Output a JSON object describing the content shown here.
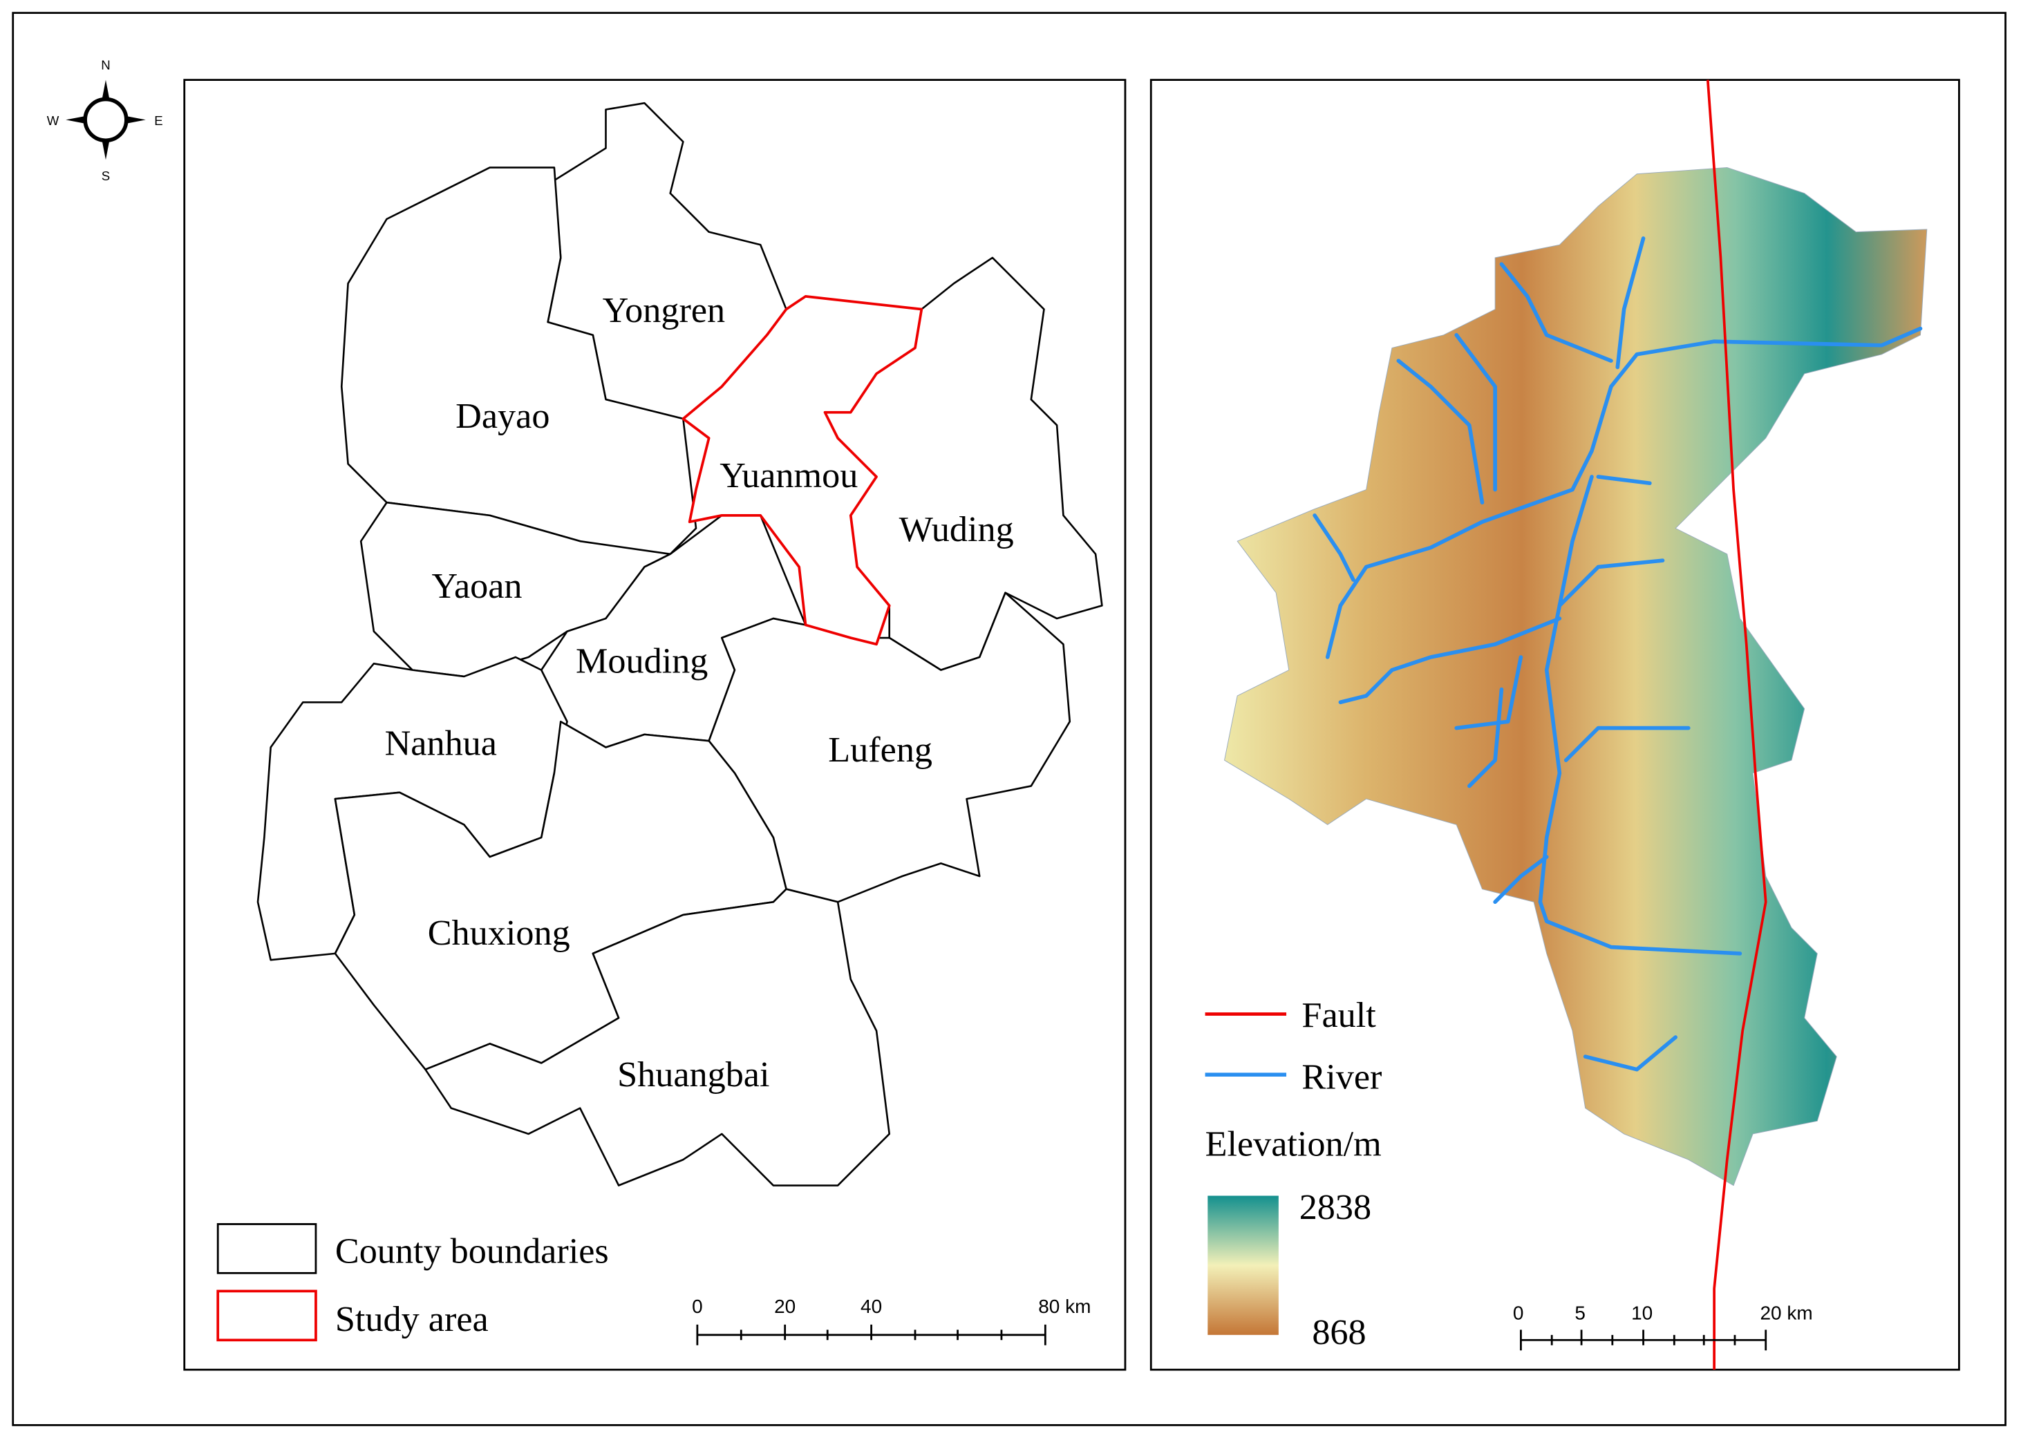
{
  "compass": {
    "north": "N",
    "south": "S",
    "west": "W",
    "east": "E"
  },
  "left_map": {
    "counties": [
      "Yongren",
      "Dayao",
      "Yuanmou",
      "Wuding",
      "Yaoan",
      "Mouding",
      "Nanhua",
      "Lufeng",
      "Chuxiong",
      "Shuangbai"
    ],
    "legend": [
      "County boundaries",
      "Study area"
    ],
    "scale_bar": [
      "0",
      "20",
      "40",
      "80 km"
    ]
  },
  "right_map": {
    "legend": [
      "Fault",
      "River"
    ],
    "elevation_title": "Elevation/m",
    "elevation_max": 2838,
    "elevation_min": 868,
    "scale_bar": [
      "0",
      "5",
      "10",
      "20 km"
    ]
  }
}
